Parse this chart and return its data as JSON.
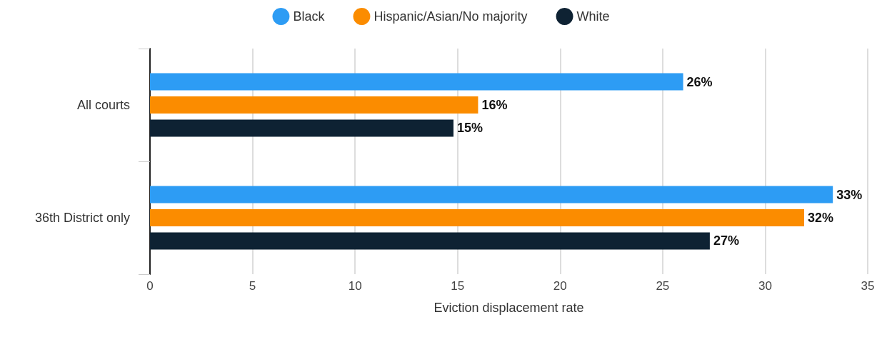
{
  "chart_data": {
    "type": "bar",
    "orientation": "horizontal",
    "xlabel": "Eviction displacement rate",
    "categories": [
      "All courts",
      "36th District only"
    ],
    "series": [
      {
        "name": "Black",
        "color": "#2d9cf4",
        "values": [
          26.0,
          33.3
        ],
        "value_labels": [
          "26%",
          "33%"
        ]
      },
      {
        "name": "Hispanic/Asian/No majority",
        "color": "#fb8c00",
        "values": [
          16.0,
          31.9
        ],
        "value_labels": [
          "16%",
          "32%"
        ]
      },
      {
        "name": "White",
        "color": "#0e2233",
        "values": [
          14.8,
          27.3
        ],
        "value_labels": [
          "15%",
          "27%"
        ]
      }
    ],
    "xlim": [
      0,
      35
    ],
    "xticks": [
      0,
      5,
      10,
      15,
      20,
      25,
      30,
      35
    ],
    "grid": "x",
    "legend": "top"
  }
}
